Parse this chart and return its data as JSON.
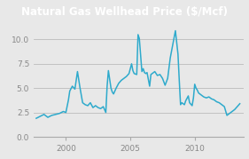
{
  "title": "Natural Gas Wellhead Price ($/Mcf)",
  "title_bg_color": "#1a6b00",
  "title_text_color": "#ffffff",
  "line_color": "#2eaacc",
  "bg_color": "#e8e8e8",
  "plot_bg_color": "#e8e8e8",
  "ylim": [
    0.0,
    11.5
  ],
  "yticks": [
    0.0,
    2.5,
    5.0,
    7.5,
    10.0
  ],
  "xlim": [
    1997.5,
    2013.8
  ],
  "xticks": [
    2000,
    2005,
    2010
  ],
  "grid_color": "#bbbbbb",
  "series": [
    [
      1997.7,
      1.9
    ],
    [
      1998.0,
      2.1
    ],
    [
      1998.3,
      2.3
    ],
    [
      1998.6,
      2.0
    ],
    [
      1998.9,
      2.2
    ],
    [
      1999.2,
      2.3
    ],
    [
      1999.5,
      2.4
    ],
    [
      1999.8,
      2.6
    ],
    [
      2000.0,
      2.5
    ],
    [
      2000.2,
      3.8
    ],
    [
      2000.3,
      4.7
    ],
    [
      2000.5,
      5.2
    ],
    [
      2000.7,
      4.9
    ],
    [
      2000.9,
      6.7
    ],
    [
      2001.1,
      5.0
    ],
    [
      2001.3,
      3.5
    ],
    [
      2001.5,
      3.3
    ],
    [
      2001.7,
      3.2
    ],
    [
      2001.9,
      3.5
    ],
    [
      2002.1,
      3.0
    ],
    [
      2002.3,
      3.2
    ],
    [
      2002.5,
      3.0
    ],
    [
      2002.7,
      2.9
    ],
    [
      2002.9,
      3.1
    ],
    [
      2003.1,
      2.5
    ],
    [
      2003.2,
      5.2
    ],
    [
      2003.3,
      6.8
    ],
    [
      2003.5,
      5.0
    ],
    [
      2003.6,
      4.6
    ],
    [
      2003.7,
      4.4
    ],
    [
      2003.9,
      5.0
    ],
    [
      2004.1,
      5.5
    ],
    [
      2004.3,
      5.8
    ],
    [
      2004.5,
      6.0
    ],
    [
      2004.7,
      6.2
    ],
    [
      2004.9,
      6.5
    ],
    [
      2005.1,
      7.5
    ],
    [
      2005.2,
      6.8
    ],
    [
      2005.3,
      6.5
    ],
    [
      2005.5,
      6.4
    ],
    [
      2005.6,
      10.5
    ],
    [
      2005.7,
      10.1
    ],
    [
      2005.9,
      6.7
    ],
    [
      2006.0,
      7.0
    ],
    [
      2006.1,
      6.6
    ],
    [
      2006.2,
      6.5
    ],
    [
      2006.3,
      6.6
    ],
    [
      2006.5,
      5.2
    ],
    [
      2006.6,
      6.4
    ],
    [
      2006.7,
      6.5
    ],
    [
      2006.9,
      6.7
    ],
    [
      2007.1,
      6.3
    ],
    [
      2007.3,
      6.4
    ],
    [
      2007.5,
      6.0
    ],
    [
      2007.7,
      5.3
    ],
    [
      2007.9,
      6.0
    ],
    [
      2008.1,
      8.1
    ],
    [
      2008.3,
      9.5
    ],
    [
      2008.5,
      10.9
    ],
    [
      2008.7,
      8.5
    ],
    [
      2008.8,
      5.8
    ],
    [
      2008.9,
      3.3
    ],
    [
      2009.0,
      3.5
    ],
    [
      2009.2,
      3.3
    ],
    [
      2009.3,
      3.7
    ],
    [
      2009.5,
      4.2
    ],
    [
      2009.6,
      3.5
    ],
    [
      2009.8,
      3.2
    ],
    [
      2009.9,
      4.0
    ],
    [
      2010.0,
      5.4
    ],
    [
      2010.1,
      5.0
    ],
    [
      2010.2,
      4.8
    ],
    [
      2010.3,
      4.5
    ],
    [
      2010.5,
      4.3
    ],
    [
      2010.7,
      4.1
    ],
    [
      2010.9,
      4.0
    ],
    [
      2011.1,
      4.1
    ],
    [
      2011.3,
      3.9
    ],
    [
      2011.5,
      3.8
    ],
    [
      2011.7,
      3.6
    ],
    [
      2011.9,
      3.5
    ],
    [
      2012.1,
      3.3
    ],
    [
      2012.3,
      3.1
    ],
    [
      2012.5,
      2.2
    ],
    [
      2012.7,
      2.4
    ],
    [
      2012.9,
      2.6
    ],
    [
      2013.1,
      2.8
    ],
    [
      2013.3,
      3.1
    ],
    [
      2013.5,
      3.4
    ]
  ],
  "line_width": 1.1,
  "title_fontsize": 8.5,
  "tick_fontsize": 6.5,
  "tick_color": "#888888",
  "spine_color": "#aaaaaa"
}
